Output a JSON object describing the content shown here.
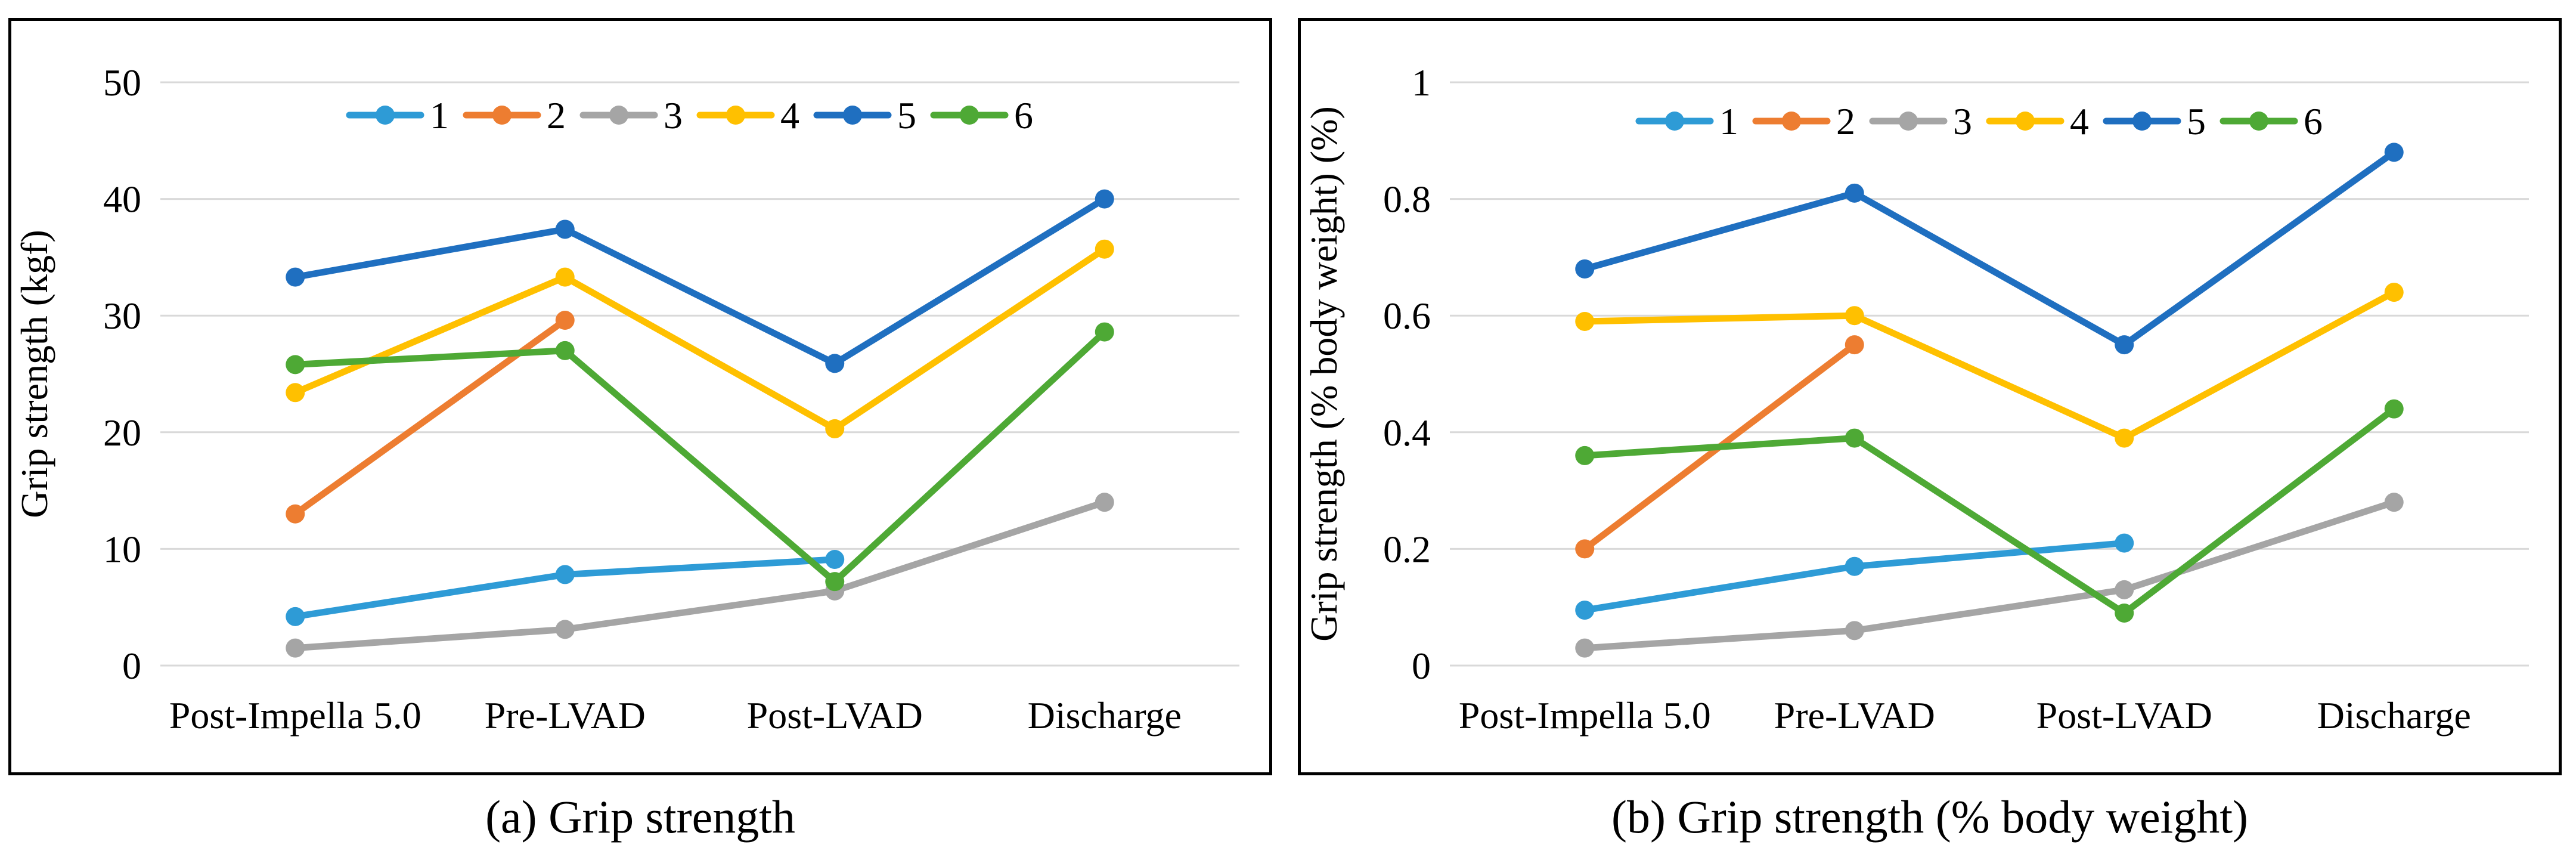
{
  "captions": {
    "a": "(a) Grip strength",
    "b": "(b) Grip strength (% body weight)"
  },
  "chart_data": [
    {
      "type": "line",
      "title": "",
      "xlabel": "",
      "ylabel": "Grip strength (kgf)",
      "categories": [
        "Post-Impella 5.0",
        "Pre-LVAD",
        "Post-LVAD",
        "Discharge"
      ],
      "ylim": [
        0,
        50
      ],
      "yticks": [
        0,
        10,
        20,
        30,
        40,
        50
      ],
      "ytick_labels": [
        "0",
        "10",
        "20",
        "30",
        "40",
        "50"
      ],
      "grid": true,
      "legend": "top-center",
      "series": [
        {
          "name": "1",
          "color": "#2E9BD6",
          "values": [
            4.2,
            7.8,
            9.1,
            null
          ]
        },
        {
          "name": "2",
          "color": "#ED7D31",
          "values": [
            13.0,
            29.6,
            null,
            null
          ]
        },
        {
          "name": "3",
          "color": "#A5A5A5",
          "values": [
            1.5,
            3.1,
            6.4,
            14.0
          ]
        },
        {
          "name": "4",
          "color": "#FFC000",
          "values": [
            23.4,
            33.3,
            20.3,
            35.7
          ]
        },
        {
          "name": "5",
          "color": "#1F6FC0",
          "values": [
            33.3,
            37.4,
            25.9,
            40.0
          ]
        },
        {
          "name": "6",
          "color": "#4EA935",
          "values": [
            25.8,
            27.0,
            7.2,
            28.6
          ]
        }
      ]
    },
    {
      "type": "line",
      "title": "",
      "xlabel": "",
      "ylabel": "Grip strength (% body weight) (%)",
      "categories": [
        "Post-Impella 5.0",
        "Pre-LVAD",
        "Post-LVAD",
        "Discharge"
      ],
      "ylim": [
        0,
        1
      ],
      "yticks": [
        0,
        0.2,
        0.4,
        0.6,
        0.8,
        1
      ],
      "ytick_labels": [
        "0",
        "0.2",
        "0.4",
        "0.6",
        "0.8",
        "1"
      ],
      "grid": true,
      "legend": "top-center",
      "series": [
        {
          "name": "1",
          "color": "#2E9BD6",
          "values": [
            0.095,
            0.17,
            0.21,
            null
          ]
        },
        {
          "name": "2",
          "color": "#ED7D31",
          "values": [
            0.2,
            0.55,
            null,
            null
          ]
        },
        {
          "name": "3",
          "color": "#A5A5A5",
          "values": [
            0.03,
            0.06,
            0.13,
            0.28
          ]
        },
        {
          "name": "4",
          "color": "#FFC000",
          "values": [
            0.59,
            0.6,
            0.39,
            0.64
          ]
        },
        {
          "name": "5",
          "color": "#1F6FC0",
          "values": [
            0.68,
            0.81,
            0.55,
            0.88
          ]
        },
        {
          "name": "6",
          "color": "#4EA935",
          "values": [
            0.36,
            0.39,
            0.09,
            0.44
          ]
        }
      ]
    }
  ]
}
